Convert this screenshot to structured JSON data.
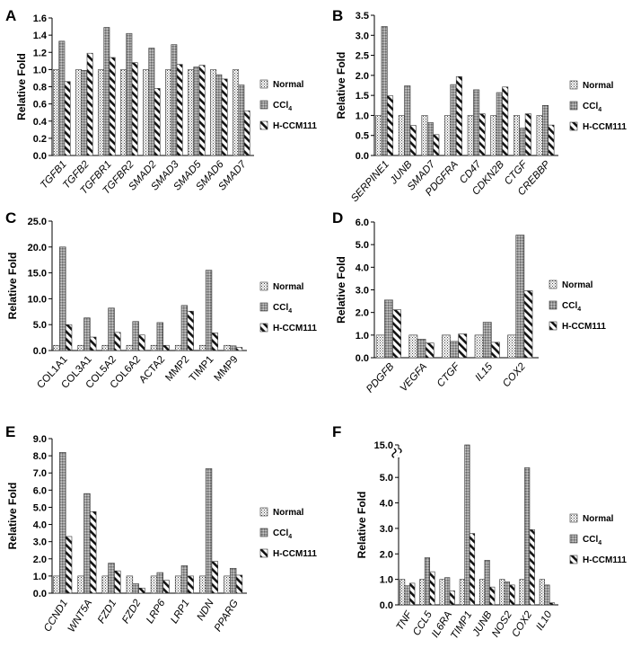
{
  "figure": {
    "legend_labels": [
      "Normal",
      "CCl4",
      "H-CCM111"
    ],
    "axis_label": "Relative Fold"
  },
  "chart_data": [
    {
      "panel": "A",
      "type": "bar",
      "ylabel": "Relative Fold",
      "ylim": [
        0,
        1.6
      ],
      "yticks": [
        0,
        0.2,
        0.4,
        0.6,
        0.8,
        1.0,
        1.2,
        1.4,
        1.6
      ],
      "decimals": 1,
      "italic_ticks": true,
      "categories": [
        "TGFB1",
        "TGFB2",
        "TGFBR1",
        "TGFBR2",
        "SMAD2",
        "SMAD3",
        "SMAD5",
        "SMAD6",
        "SMAD7"
      ],
      "series": [
        {
          "name": "Normal",
          "values": [
            1.0,
            1.0,
            1.0,
            1.0,
            1.0,
            1.0,
            1.0,
            1.0,
            1.0
          ]
        },
        {
          "name": "CCl4",
          "values": [
            1.33,
            0.99,
            1.49,
            1.42,
            1.25,
            1.29,
            1.03,
            0.94,
            0.82
          ]
        },
        {
          "name": "H-CCM111",
          "values": [
            0.86,
            1.19,
            1.14,
            1.08,
            0.78,
            1.06,
            1.05,
            0.89,
            0.52
          ]
        }
      ]
    },
    {
      "panel": "B",
      "type": "bar",
      "ylabel": "Relative Fold",
      "ylim": [
        0,
        3.5
      ],
      "yticks": [
        0,
        0.5,
        1.0,
        1.5,
        2.0,
        2.5,
        3.0,
        3.5
      ],
      "decimals": 1,
      "italic_ticks": true,
      "categories": [
        "SERPINE1",
        "JUNB",
        "SMAD7",
        "PDGFRA",
        "CD47",
        "CDKN2B",
        "CTGF",
        "CREBBP"
      ],
      "series": [
        {
          "name": "Normal",
          "values": [
            1.0,
            1.0,
            1.0,
            1.0,
            1.0,
            1.0,
            1.0,
            1.0
          ]
        },
        {
          "name": "CCl4",
          "values": [
            3.22,
            1.74,
            0.82,
            1.77,
            1.64,
            1.57,
            0.68,
            1.25
          ]
        },
        {
          "name": "H-CCM111",
          "values": [
            1.49,
            0.75,
            0.52,
            1.97,
            1.04,
            1.71,
            1.04,
            0.76
          ]
        }
      ]
    },
    {
      "panel": "C",
      "type": "bar",
      "ylabel": "Relative Fold",
      "ylim": [
        0,
        25
      ],
      "yticks": [
        0,
        5,
        10,
        15,
        20,
        25
      ],
      "decimals": 1,
      "italic_ticks": false,
      "categories": [
        "COL1A1",
        "COL3A1",
        "COL5A2",
        "COL6A2",
        "ACTA2",
        "MMP2",
        "TIMP1",
        "MMP9"
      ],
      "series": [
        {
          "name": "Normal",
          "values": [
            1.0,
            1.0,
            1.0,
            1.0,
            1.0,
            1.0,
            1.0,
            1.0
          ]
        },
        {
          "name": "CCl4",
          "values": [
            20.0,
            6.3,
            8.2,
            5.6,
            5.4,
            8.7,
            15.5,
            0.9
          ]
        },
        {
          "name": "H-CCM111",
          "values": [
            5.0,
            2.6,
            3.5,
            3.0,
            1.0,
            7.6,
            3.4,
            0.6
          ]
        }
      ]
    },
    {
      "panel": "D",
      "type": "bar",
      "ylabel": "Relative Fold",
      "ylim": [
        0,
        6
      ],
      "yticks": [
        0,
        1,
        2,
        3,
        4,
        5,
        6
      ],
      "decimals": 1,
      "italic_ticks": true,
      "categories": [
        "PDGFB",
        "VEGFA",
        "CTGF",
        "IL15",
        "COX2"
      ],
      "series": [
        {
          "name": "Normal",
          "values": [
            1.0,
            1.0,
            1.0,
            1.0,
            1.0
          ]
        },
        {
          "name": "CCl4",
          "values": [
            2.55,
            0.82,
            0.72,
            1.57,
            5.42
          ]
        },
        {
          "name": "H-CCM111",
          "values": [
            2.12,
            0.65,
            1.05,
            0.68,
            2.96
          ]
        }
      ]
    },
    {
      "panel": "E",
      "type": "bar",
      "ylabel": "Relative Fold",
      "ylim": [
        0,
        9
      ],
      "yticks": [
        0,
        1,
        2,
        3,
        4,
        5,
        6,
        7,
        8,
        9
      ],
      "decimals": 1,
      "italic_ticks": true,
      "categories": [
        "CCND1",
        "WNT5A",
        "FZD1",
        "FZD2",
        "LRP6",
        "LRP1",
        "NDN",
        "PPARG"
      ],
      "series": [
        {
          "name": "Normal",
          "values": [
            1.0,
            1.0,
            1.0,
            1.0,
            1.0,
            1.0,
            1.0,
            1.0
          ]
        },
        {
          "name": "CCl4",
          "values": [
            8.2,
            5.8,
            1.75,
            0.55,
            1.2,
            1.6,
            7.25,
            1.45
          ]
        },
        {
          "name": "H-CCM111",
          "values": [
            3.3,
            4.75,
            1.3,
            0.3,
            0.75,
            1.0,
            1.85,
            1.05
          ]
        }
      ]
    },
    {
      "panel": "F",
      "type": "bar",
      "ylabel": "Relative Fold",
      "ylim": [
        0,
        6
      ],
      "yticks": [
        0,
        1,
        2,
        3,
        4,
        5
      ],
      "ytick_labels": [
        "0.0",
        "1.0",
        "2.0",
        "3.0",
        "4.0",
        "5.0"
      ],
      "decimals": 1,
      "axis_break": true,
      "break_label": "15.0",
      "italic_ticks": true,
      "categories": [
        "TNF",
        "CCL5",
        "IL6RA",
        "TIMP1",
        "JUNB",
        "NOS2",
        "COX2",
        "IL10"
      ],
      "series": [
        {
          "name": "Normal",
          "values": [
            1.0,
            1.0,
            1.0,
            1.0,
            1.0,
            1.0,
            1.0,
            1.0
          ]
        },
        {
          "name": "CCl4",
          "values": [
            0.75,
            1.85,
            1.07,
            15.0,
            1.75,
            0.9,
            5.38,
            0.78
          ]
        },
        {
          "name": "H-CCM111",
          "values": [
            0.85,
            1.3,
            0.55,
            2.8,
            0.7,
            0.78,
            2.95,
            0.08
          ]
        }
      ]
    }
  ]
}
